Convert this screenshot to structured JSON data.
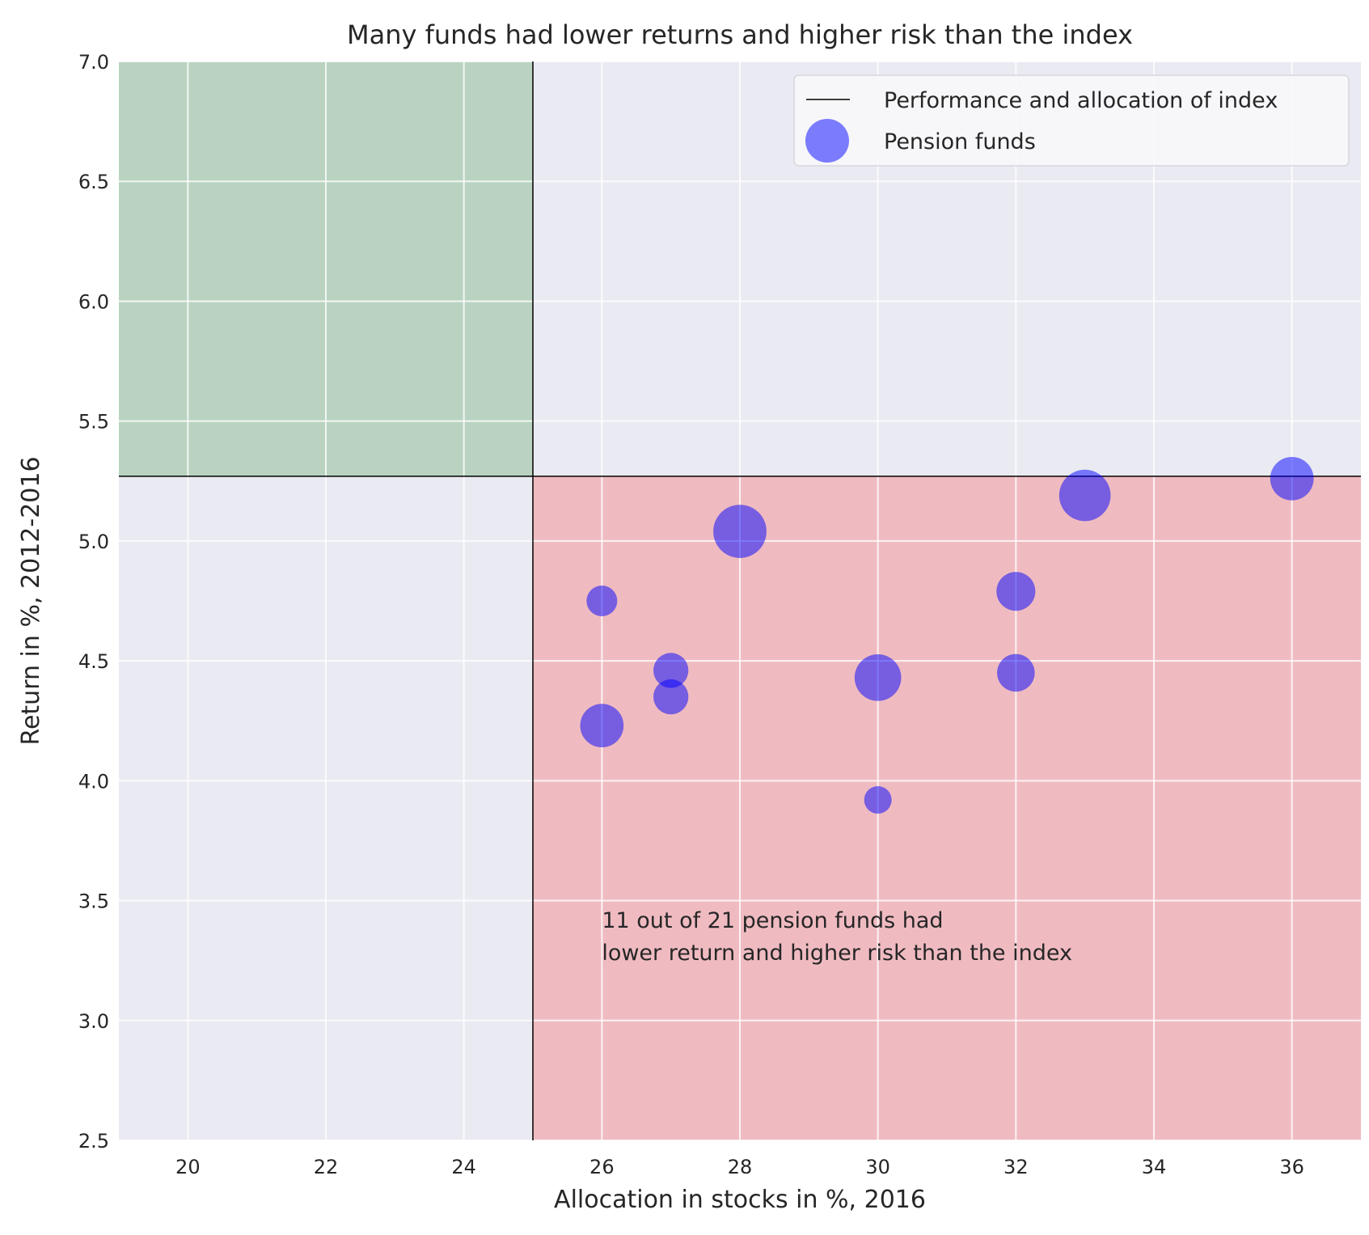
{
  "chart_data": {
    "type": "scatter",
    "title": "Many funds had lower returns and higher risk than the index",
    "xlabel": "Allocation in stocks in %, 2016",
    "ylabel": "Return in %, 2012-2016",
    "xlim": [
      19,
      37
    ],
    "ylim": [
      2.5,
      7.0
    ],
    "xticks": [
      20,
      22,
      24,
      26,
      28,
      30,
      32,
      34,
      36
    ],
    "yticks": [
      2.5,
      3.0,
      3.5,
      4.0,
      4.5,
      5.0,
      5.5,
      6.0,
      6.5,
      7.0
    ],
    "x_tick_labels": [
      "20",
      "22",
      "24",
      "26",
      "28",
      "30",
      "32",
      "34",
      "36"
    ],
    "y_tick_labels": [
      "2.5",
      "3.0",
      "3.5",
      "4.0",
      "4.5",
      "5.0",
      "5.5",
      "6.0",
      "6.5",
      "7.0"
    ],
    "grid": true,
    "index": {
      "x": 25,
      "y": 5.27
    },
    "regions": [
      {
        "name": "better",
        "color": "#b9d3c0",
        "x_range": [
          19,
          25
        ],
        "y_range": [
          5.27,
          7.0
        ]
      },
      {
        "name": "worse",
        "color": "#efbbc1",
        "x_range": [
          25,
          37
        ],
        "y_range": [
          2.5,
          5.27
        ]
      }
    ],
    "series": [
      {
        "name": "Pension funds",
        "color": "#0000ff",
        "opacity": 0.5,
        "points": [
          {
            "x": 26,
            "y": 4.75,
            "size": 1
          },
          {
            "x": 26,
            "y": 4.23,
            "size": 2
          },
          {
            "x": 27,
            "y": 4.46,
            "size": 1.3
          },
          {
            "x": 27,
            "y": 4.35,
            "size": 1.3
          },
          {
            "x": 28,
            "y": 5.04,
            "size": 3
          },
          {
            "x": 30,
            "y": 4.43,
            "size": 2.3
          },
          {
            "x": 30,
            "y": 3.92,
            "size": 0.8
          },
          {
            "x": 32,
            "y": 4.79,
            "size": 1.6
          },
          {
            "x": 32,
            "y": 4.45,
            "size": 1.5
          },
          {
            "x": 33,
            "y": 5.19,
            "size": 2.8
          },
          {
            "x": 36,
            "y": 5.26,
            "size": 2
          }
        ]
      }
    ],
    "legend": {
      "position": "top-right",
      "entries": [
        "Performance and allocation of index",
        "Pension funds"
      ]
    },
    "annotation": {
      "x": 26,
      "y": 3.4,
      "lines": [
        "11 out of 21 pension funds had",
        " lower return and higher risk than the index"
      ]
    }
  }
}
